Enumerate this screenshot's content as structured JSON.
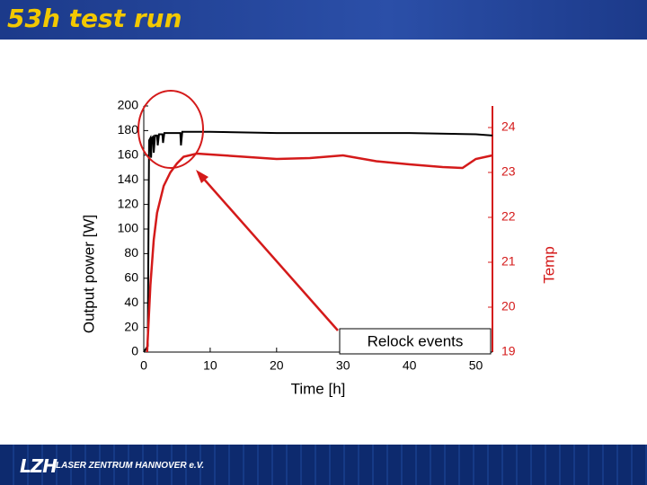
{
  "header": {
    "title": "53h test run"
  },
  "chart_data": {
    "type": "line",
    "x_label": "Time [h]",
    "y_label": "Output power [W]",
    "y2_label": "Temp",
    "annotation": "Relock events",
    "xlim": [
      0,
      52.5
    ],
    "xticks": [
      0,
      10,
      20,
      30,
      40,
      50
    ],
    "ylim": [
      0,
      200
    ],
    "yticks": [
      0,
      20,
      40,
      60,
      80,
      100,
      120,
      140,
      160,
      180,
      200
    ],
    "y2lim": [
      19,
      24.48
    ],
    "y2ticks": [
      19,
      20,
      21,
      22,
      23,
      24
    ],
    "grid": false,
    "series": [
      {
        "name": "Output power",
        "color": "#000000",
        "x": [
          0,
          0.6,
          0.8,
          1.0,
          1.1,
          1.2,
          1.4,
          1.5,
          1.7,
          2.0,
          2.1,
          2.3,
          2.8,
          2.9,
          3.1,
          4.0,
          5.5,
          5.6,
          5.8,
          7,
          10,
          20,
          30,
          40,
          50,
          52.5
        ],
        "values": [
          0,
          5,
          172,
          174,
          158,
          174,
          175,
          162,
          176,
          176,
          168,
          177,
          177,
          170,
          178,
          178,
          178,
          168,
          179,
          179,
          179,
          178,
          178,
          178,
          177,
          176
        ]
      },
      {
        "name": "Temperature",
        "color": "#d41a1a",
        "axis": "y2",
        "x": [
          0.5,
          1,
          1.5,
          2,
          3,
          4,
          5,
          6,
          8,
          10,
          15,
          20,
          25,
          30,
          35,
          40,
          45,
          48,
          50,
          52.5
        ],
        "values": [
          19,
          20.5,
          21.5,
          22.1,
          22.7,
          23.0,
          23.2,
          23.35,
          23.42,
          23.4,
          23.35,
          23.3,
          23.32,
          23.38,
          23.25,
          23.18,
          23.12,
          23.1,
          23.3,
          23.38
        ]
      }
    ]
  },
  "footer": {
    "logo": "LZH",
    "organization": "LASER ZENTRUM HANNOVER e.V."
  }
}
